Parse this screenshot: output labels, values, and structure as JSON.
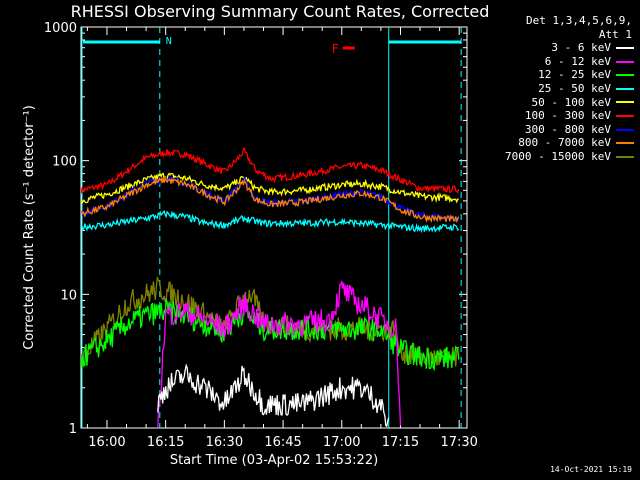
{
  "page": {
    "title": "RHESSI Observing Summary Count Rates, Corrected",
    "timestamp": "14-Oct-2021 15:19"
  },
  "legend": {
    "header_line1": "Det 1,3,4,5,6,9,",
    "header_line2": "Att 1",
    "entries": [
      {
        "label": "3 - 6 keV",
        "color": "#ffffff"
      },
      {
        "label": "6 - 12 keV",
        "color": "#ff00ff"
      },
      {
        "label": "12 - 25 keV",
        "color": "#00ff00"
      },
      {
        "label": "25 - 50 keV",
        "color": "#00ffff"
      },
      {
        "label": "50 - 100 keV",
        "color": "#ffff00"
      },
      {
        "label": "100 - 300 keV",
        "color": "#ff0000"
      },
      {
        "label": "300 - 800 keV",
        "color": "#0000ff"
      },
      {
        "label": "800 - 7000 keV",
        "color": "#ff8000"
      },
      {
        "label": "7000 - 15000 keV",
        "color": "#808000"
      }
    ]
  },
  "chart_data": {
    "type": "line",
    "title": "RHESSI Observing Summary Count Rates, Corrected",
    "xlabel": "Start Time (03-Apr-02 15:53:22)",
    "ylabel": "Corrected Count Rate (s⁻¹ detector⁻¹)",
    "yscale": "log",
    "ylim": [
      1,
      1000
    ],
    "xlim": [
      "15:53:22",
      "17:32"
    ],
    "x_ticks": [
      "16:00",
      "16:15",
      "16:30",
      "16:45",
      "17:00",
      "17:15",
      "17:30"
    ],
    "y_ticks": [
      "1",
      "10",
      "100",
      "1000"
    ],
    "flags": {
      "N_label": "N",
      "F_label": "F"
    },
    "series": [
      {
        "name": "100 - 300 keV",
        "color": "#ff0000",
        "x": [
          "15:53:22",
          "16:00",
          "16:10",
          "16:15",
          "16:20",
          "16:25",
          "16:30",
          "16:33",
          "16:35",
          "16:38",
          "16:42",
          "16:50",
          "17:00",
          "17:05",
          "17:10",
          "17:15",
          "17:20",
          "17:30"
        ],
        "y": [
          60,
          66,
          105,
          115,
          112,
          95,
          82,
          100,
          118,
          85,
          73,
          78,
          90,
          92,
          85,
          72,
          62,
          61
        ]
      },
      {
        "name": "50 - 100 keV",
        "color": "#ffff00",
        "x": [
          "15:53:22",
          "16:00",
          "16:10",
          "16:15",
          "16:20",
          "16:25",
          "16:30",
          "16:33",
          "16:35",
          "16:38",
          "16:42",
          "16:50",
          "17:00",
          "17:05",
          "17:10",
          "17:15",
          "17:20",
          "17:30"
        ],
        "y": [
          50,
          56,
          72,
          78,
          74,
          66,
          62,
          68,
          75,
          62,
          58,
          60,
          66,
          67,
          64,
          58,
          54,
          52
        ]
      },
      {
        "name": "300 - 800 keV",
        "color": "#0000ff",
        "x": [
          "15:53:22",
          "16:00",
          "16:10",
          "16:15",
          "16:20",
          "16:25",
          "16:30",
          "16:33",
          "16:35",
          "16:38",
          "16:42",
          "16:50",
          "17:00",
          "17:05",
          "17:10",
          "17:15",
          "17:20",
          "17:30"
        ],
        "y": [
          40,
          46,
          68,
          74,
          68,
          58,
          50,
          62,
          72,
          52,
          48,
          50,
          56,
          58,
          54,
          44,
          39,
          37
        ]
      },
      {
        "name": "800 - 7000 keV",
        "color": "#ff8000",
        "x": [
          "15:53:22",
          "16:00",
          "16:10",
          "16:15",
          "16:20",
          "16:25",
          "16:30",
          "16:33",
          "16:35",
          "16:38",
          "16:42",
          "16:50",
          "17:00",
          "17:05",
          "17:10",
          "17:15",
          "17:20",
          "17:30"
        ],
        "y": [
          40,
          45,
          66,
          72,
          67,
          57,
          49,
          60,
          70,
          51,
          47,
          49,
          55,
          57,
          53,
          43,
          38,
          36
        ]
      },
      {
        "name": "25 - 50 keV",
        "color": "#00ffff",
        "x": [
          "15:53:22",
          "16:00",
          "16:10",
          "16:15",
          "16:20",
          "16:25",
          "16:30",
          "16:35",
          "16:40",
          "16:50",
          "17:00",
          "17:10",
          "17:15",
          "17:20",
          "17:30"
        ],
        "y": [
          32,
          33,
          37,
          40,
          38,
          34,
          33,
          37,
          34,
          34,
          35,
          33,
          32,
          31,
          32
        ]
      },
      {
        "name": "7000 - 15000 keV",
        "color": "#808000",
        "x": [
          "15:53:22",
          "16:00",
          "16:05",
          "16:10",
          "16:13",
          "16:15",
          "16:20",
          "16:25",
          "16:30",
          "16:35",
          "16:37",
          "16:40",
          "16:50",
          "17:00",
          "17:10",
          "17:13",
          "17:15",
          "17:20",
          "17:30"
        ],
        "y": [
          3.3,
          5.5,
          8.5,
          10,
          11,
          10.5,
          9,
          7,
          5.5,
          9.5,
          10,
          6,
          5.5,
          5.5,
          5.5,
          5.5,
          3.8,
          3.4,
          3.3
        ]
      },
      {
        "name": "12 - 25 keV",
        "color": "#00ff00",
        "x": [
          "15:53:22",
          "16:00",
          "16:05",
          "16:10",
          "16:15",
          "16:20",
          "16:25",
          "16:30",
          "16:35",
          "16:40",
          "16:50",
          "17:00",
          "17:10",
          "17:15",
          "17:20",
          "17:30"
        ],
        "y": [
          3.3,
          4.5,
          6,
          7,
          7.5,
          7,
          6,
          5.2,
          7.5,
          5.5,
          5.5,
          5.5,
          5.5,
          3.8,
          3.4,
          3.3
        ]
      },
      {
        "name": "6 - 12 keV",
        "color": "#ff00ff",
        "x": [
          "16:13",
          "16:15",
          "16:20",
          "16:25",
          "16:30",
          "16:35",
          "16:40",
          "16:50",
          "16:57",
          "17:00",
          "17:03",
          "17:06",
          "17:10",
          "17:14",
          "17:15"
        ],
        "y": [
          1,
          7,
          7.5,
          6.5,
          5.5,
          8.5,
          6,
          6,
          6.5,
          11,
          9,
          8,
          6.5,
          5.5,
          1
        ]
      },
      {
        "name": "3 - 6 keV",
        "color": "#ffffff",
        "x": [
          "16:13",
          "16:15",
          "16:20",
          "16:25",
          "16:30",
          "16:35",
          "16:40",
          "16:50",
          "17:00",
          "17:05",
          "17:10",
          "17:12"
        ],
        "y": [
          1.5,
          2,
          2.5,
          2,
          1.5,
          2.5,
          1.5,
          1.5,
          2,
          2,
          1.5,
          1
        ]
      }
    ]
  }
}
